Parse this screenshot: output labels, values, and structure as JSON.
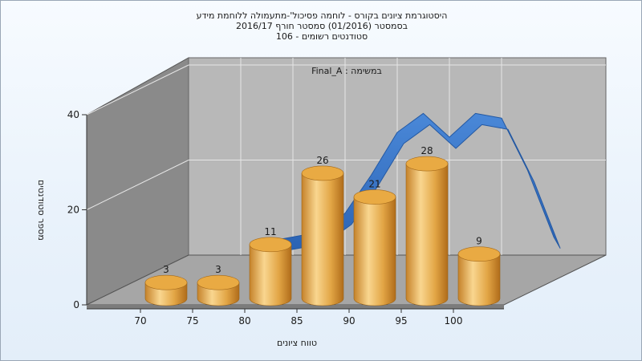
{
  "chart_data": {
    "type": "bar",
    "title_lines": [
      "היסטוגרמת ציונים בקורס - לוחמה פסיכול'-מתעמולה ללוחמת מידע",
      "בסמסטר  (01/2016)  סמסטר חורף 2016/17",
      "סטודנטים רשומים - 106"
    ],
    "subtitle": "במשימה : Final_A",
    "xlabel": "טווח ציונים",
    "ylabel": "מספר סטודנטים",
    "x_ticks": [
      "70",
      "75",
      "80",
      "85",
      "90",
      "95",
      "100"
    ],
    "y_ticks": [
      "0",
      "20",
      "40"
    ],
    "ylim": [
      0,
      40
    ],
    "bars": [
      {
        "label": "3",
        "value": 3
      },
      {
        "label": "3",
        "value": 3
      },
      {
        "label": "11",
        "value": 11
      },
      {
        "label": "26",
        "value": 26
      },
      {
        "label": "21",
        "value": 21
      },
      {
        "label": "28",
        "value": 28
      },
      {
        "label": "9",
        "value": 9
      }
    ],
    "curve": {
      "x": [
        77.5,
        80,
        82.5,
        85,
        87.5,
        90,
        92.5,
        95,
        97.5,
        100,
        102.5,
        105
      ],
      "y": [
        4,
        5,
        6,
        10,
        18,
        27,
        31,
        26,
        31,
        30,
        19,
        5
      ]
    },
    "grid": true,
    "colors": {
      "bar_light": "#f7d28a",
      "bar_mid": "#e2a13f",
      "bar_dark": "#b9761f",
      "curve": "#2f6fc4",
      "back_wall": "#b9b9b9",
      "side_wall": "#8c8c8c",
      "floor": "#a9a9a9"
    }
  }
}
